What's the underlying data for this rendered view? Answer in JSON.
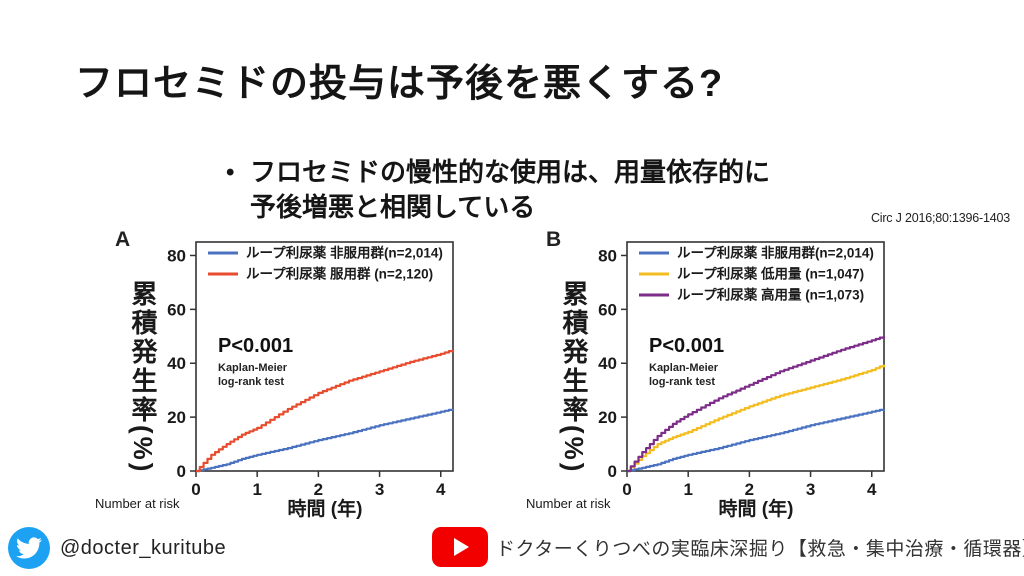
{
  "slide": {
    "title": "フロセミドの投与は予後を悪くする?",
    "bullet": {
      "marker": "•",
      "line1": "フロセミドの慢性的な使用は、用量依存的に",
      "line2": "予後増悪と相関している"
    },
    "citation": "Circ J 2016;80:1396-1403"
  },
  "footer": {
    "twitter_icon": "twitter-bird",
    "twitter_color": "#1da1f2",
    "twitter_handle": "@docter_kuritube",
    "youtube_icon": "youtube-play",
    "youtube_color": "#f20000",
    "youtube_channel": "ドクターくりつべの実臨床深掘り【救急・集中治療・循環器】"
  },
  "chart_data": [
    {
      "panel": "A",
      "type": "line",
      "subtype": "kaplan-meier",
      "ylabel": "累積発生率(%)",
      "xlabel": "時間 (年)",
      "number_at_risk_label": "Number at risk",
      "p_value": "P<0.001",
      "method_lines": [
        "Kaplan-Meier",
        "log-rank test"
      ],
      "ylim": [
        0,
        85
      ],
      "xlim": [
        0,
        4.2
      ],
      "yticks": [
        0,
        20,
        40,
        60,
        80
      ],
      "xticks": [
        0,
        1,
        2,
        3,
        4
      ],
      "grid": false,
      "legend_position": "top-left-inside",
      "x": [
        0,
        0.25,
        0.5,
        0.75,
        1,
        1.5,
        2,
        2.5,
        3,
        3.5,
        4,
        4.2
      ],
      "series": [
        {
          "name": "ループ利尿薬 非服用群(n=2,014)",
          "color": "#4a72c0",
          "values": [
            0,
            1.2,
            2.5,
            4.5,
            6,
            8.5,
            11.5,
            14,
            17,
            19.5,
            22,
            23
          ]
        },
        {
          "name": "ループ利尿薬 服用群 (n=2,120)",
          "color": "#e84c2e",
          "values": [
            0,
            6,
            10,
            13.5,
            16,
            23,
            29,
            33.5,
            37,
            40.5,
            43.5,
            45
          ]
        }
      ]
    },
    {
      "panel": "B",
      "type": "line",
      "subtype": "kaplan-meier",
      "ylabel": "累積発生率(%)",
      "xlabel": "時間 (年)",
      "number_at_risk_label": "Number at risk",
      "p_value": "P<0.001",
      "method_lines": [
        "Kaplan-Meier",
        "log-rank test"
      ],
      "ylim": [
        0,
        85
      ],
      "xlim": [
        0,
        4.2
      ],
      "yticks": [
        0,
        20,
        40,
        60,
        80
      ],
      "xticks": [
        0,
        1,
        2,
        3,
        4
      ],
      "grid": false,
      "legend_position": "top-left-inside",
      "x": [
        0,
        0.25,
        0.5,
        0.75,
        1,
        1.5,
        2,
        2.5,
        3,
        3.5,
        4,
        4.2
      ],
      "series": [
        {
          "name": "ループ利尿薬 非服用群(n=2,014)",
          "color": "#4a72c0",
          "values": [
            0,
            1.2,
            2.5,
            4.5,
            6,
            8.5,
            11.5,
            14,
            17,
            19.5,
            22,
            23
          ]
        },
        {
          "name": "ループ利尿薬 低用量 (n=1,047)",
          "color": "#f3bc1f",
          "values": [
            0,
            5.5,
            10,
            12.5,
            14.5,
            19.5,
            24,
            28,
            31,
            34,
            37.5,
            39.5
          ]
        },
        {
          "name": "ループ利尿薬 高用量 (n=1,073)",
          "color": "#7b2d87",
          "values": [
            0,
            7,
            13,
            17.5,
            21,
            27,
            32,
            37,
            41,
            45,
            48.5,
            50
          ]
        }
      ]
    }
  ]
}
